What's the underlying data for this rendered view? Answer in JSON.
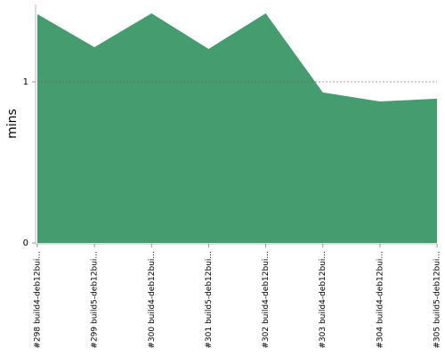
{
  "chart_data": {
    "type": "area",
    "y_label": "mins",
    "categories": [
      "#298 build4-deb12bui...",
      "#299 build5-deb12bui...",
      "#300 build4-deb12bui...",
      "#301 build5-deb12bui...",
      "#302 build4-deb12bui...",
      "#303 build4-deb12bui...",
      "#304 build4-deb12bui...",
      "#305 build5-deb12bui..."
    ],
    "values": [
      1.42,
      1.215,
      1.425,
      1.204,
      1.425,
      0.934,
      0.878,
      0.895
    ],
    "color": "#459d6f",
    "ylim": [
      0,
      1.48
    ],
    "yticks": [
      0,
      1
    ],
    "grid": true
  }
}
